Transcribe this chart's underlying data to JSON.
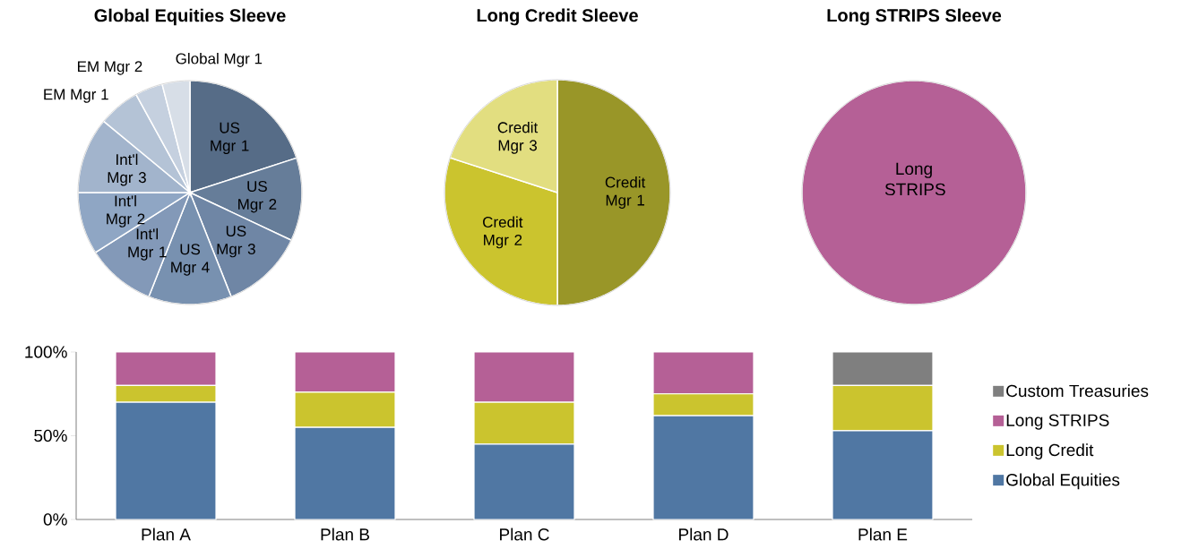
{
  "chart_data": [
    {
      "type": "pie",
      "title": "Global Equities Sleeve",
      "categories": [
        "US Mgr 1",
        "US Mgr 2",
        "US Mgr 3",
        "US Mgr 4",
        "Int'l Mgr 1",
        "Int'l Mgr 2",
        "Int'l Mgr 3",
        "EM Mgr 1",
        "EM Mgr 2",
        "Global Mgr 1"
      ],
      "values": [
        20,
        12,
        12,
        12,
        10,
        9,
        11,
        6,
        4,
        4
      ],
      "colors": [
        "#566c87",
        "#667d99",
        "#6f86a5",
        "#7891b0",
        "#8399b8",
        "#8fa6c4",
        "#a2b4cc",
        "#b4c3d6",
        "#c5d0df",
        "#d7dee7"
      ]
    },
    {
      "type": "pie",
      "title": "Long Credit Sleeve",
      "categories": [
        "Credit Mgr 1",
        "Credit Mgr 2",
        "Credit Mgr 3"
      ],
      "values": [
        50,
        30,
        20
      ],
      "colors": [
        "#999628",
        "#cbc42e",
        "#e2de80"
      ]
    },
    {
      "type": "pie",
      "title": "Long STRIPS Sleeve",
      "categories": [
        "Long STRIPS"
      ],
      "values": [
        100
      ],
      "colors": [
        "#b56096"
      ]
    },
    {
      "type": "bar",
      "stacked": true,
      "categories": [
        "Plan A",
        "Plan B",
        "Plan C",
        "Plan D",
        "Plan E"
      ],
      "series": [
        {
          "name": "Global Equities",
          "color": "#5077a3",
          "values": [
            70,
            55,
            45,
            62,
            53
          ]
        },
        {
          "name": "Long Credit",
          "color": "#cbc42e",
          "values": [
            10,
            21,
            25,
            13,
            27
          ]
        },
        {
          "name": "Long STRIPS",
          "color": "#b56096",
          "values": [
            20,
            24,
            30,
            25,
            null
          ]
        },
        {
          "name": "Custom Treasuries",
          "color": "#7f7f7f",
          "values": [
            null,
            null,
            null,
            null,
            20
          ]
        }
      ],
      "ylim": [
        0,
        100
      ],
      "yticks": [
        {
          "value": 0,
          "label": "0%"
        },
        {
          "value": 50,
          "label": "50%"
        },
        {
          "value": 100,
          "label": "100%"
        }
      ],
      "legend": "right"
    }
  ]
}
